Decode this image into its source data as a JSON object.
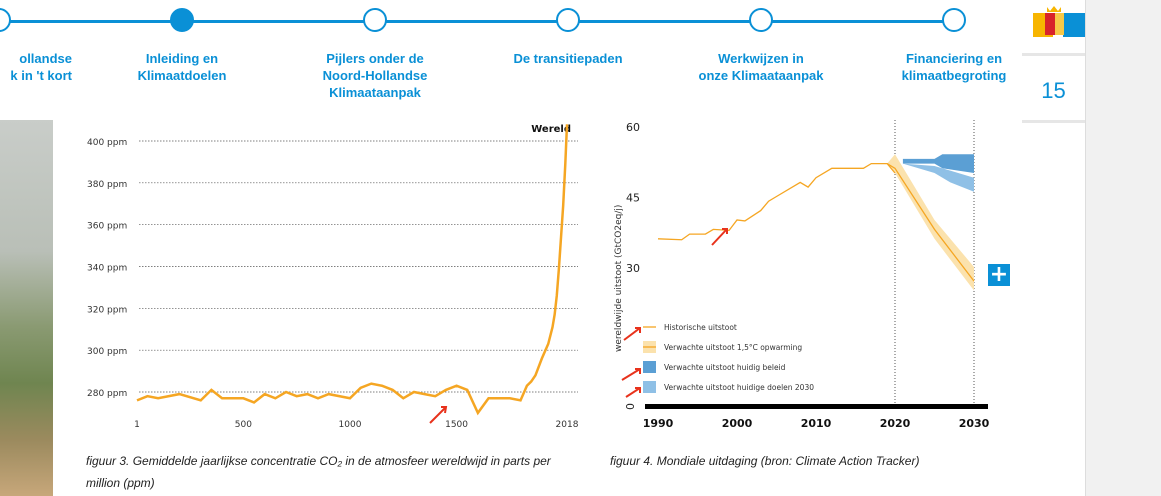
{
  "nav": {
    "steps": [
      {
        "label": "Noord-Hollandse aanpak in 't kort",
        "line1": "ollandse",
        "line2": "k in 't kort",
        "active": false
      },
      {
        "line1": "Inleiding en",
        "line2": "Klimaatdoelen",
        "active": true
      },
      {
        "line1": "Pijlers onder de",
        "line2": "Noord-Hollandse",
        "line3": "Klimaataanpak",
        "active": false
      },
      {
        "line1": "De transitiepaden",
        "active": false
      },
      {
        "line1": "Werkwijzen in",
        "line2": "onze Klimaataanpak",
        "active": false
      },
      {
        "line1": "Financiering en",
        "line2": "klimaatbegroting",
        "active": false
      }
    ]
  },
  "logo": "NH",
  "page_number": "15",
  "colors": {
    "accent": "#0a90d6",
    "orange": "#f5a623",
    "policy": "#5b9fd4",
    "targets": "#8fc0e6"
  },
  "chart_data": [
    {
      "type": "line",
      "title": "Wereld",
      "xlabel": "",
      "ylabel": "",
      "x_ticks": [
        "1",
        "500",
        "1000",
        "1500",
        "2018"
      ],
      "y_ticks": [
        "280 ppm",
        "300 ppm",
        "320 ppm",
        "340 ppm",
        "360 ppm",
        "380 ppm",
        "400 ppm"
      ],
      "xlim": [
        1,
        2018
      ],
      "ylim": [
        270,
        405
      ],
      "series": [
        {
          "name": "CO2",
          "x": [
            1,
            50,
            100,
            200,
            300,
            350,
            400,
            500,
            550,
            600,
            650,
            700,
            750,
            800,
            850,
            900,
            1000,
            1050,
            1100,
            1150,
            1200,
            1250,
            1300,
            1350,
            1400,
            1450,
            1500,
            1550,
            1600,
            1650,
            1700,
            1750,
            1800,
            1830,
            1850,
            1870,
            1900,
            1930,
            1950,
            1960,
            1970,
            1980,
            1990,
            2000,
            2010,
            2018
          ],
          "y": [
            276,
            278,
            277,
            279,
            276,
            281,
            277,
            277,
            275,
            279,
            277,
            280,
            278,
            279,
            277,
            279,
            277,
            282,
            284,
            283,
            281,
            277,
            280,
            279,
            278,
            281,
            283,
            281,
            270,
            277,
            277,
            277,
            276,
            283,
            285,
            288,
            296,
            303,
            311,
            317,
            326,
            339,
            354,
            369,
            389,
            408
          ]
        }
      ]
    },
    {
      "type": "line",
      "ylabel": "wereldwijde uitstoot (GtCO2eq/j)",
      "x_ticks": [
        "1990",
        "2000",
        "2010",
        "2020",
        "2030"
      ],
      "y_ticks": [
        "0",
        "30",
        "45",
        "60"
      ],
      "xlim": [
        1990,
        2030
      ],
      "ylim": [
        0,
        60
      ],
      "series": [
        {
          "name": "Historische uitstoot",
          "x": [
            1990,
            1993,
            1994,
            1996,
            1997,
            1999,
            2000,
            2001,
            2003,
            2004,
            2005,
            2008,
            2009,
            2010,
            2012,
            2016,
            2017,
            2019,
            2020
          ],
          "y": [
            36,
            35.8,
            37,
            37,
            38,
            37.8,
            40,
            39.8,
            42,
            44,
            45,
            48,
            47,
            49,
            51,
            51,
            52,
            52,
            50
          ]
        },
        {
          "name": "Verwachte uitstoot 1,5°C opwarming",
          "x": [
            2019,
            2020,
            2025,
            2030
          ],
          "y": [
            52,
            51,
            38,
            27
          ],
          "lower": [
            52,
            50,
            36,
            25
          ],
          "upper": [
            52,
            54,
            40,
            30
          ]
        },
        {
          "name": "Verwachte uitstoot huidig beleid",
          "x": [
            2021,
            2025,
            2026,
            2030
          ],
          "lower": [
            52,
            52,
            51,
            50
          ],
          "upper": [
            53,
            53,
            54,
            54
          ]
        },
        {
          "name": "Verwachte uitstoot huidige doelen 2030",
          "x": [
            2021,
            2025,
            2027,
            2030
          ],
          "lower": [
            52,
            50,
            48,
            46
          ],
          "upper": [
            52,
            51.5,
            50.5,
            49
          ]
        }
      ]
    }
  ],
  "legend": [
    "Historische uitstoot",
    "Verwachte uitstoot 1,5°C opwarming",
    "Verwachte uitstoot huidig beleid",
    "Verwachte uitstoot huidige doelen 2030"
  ],
  "captions": {
    "fig3": "figuur 3. Gemiddelde jaarlijkse concentratie CO₂ in de atmosfeer wereldwijd in parts per million (ppm)",
    "fig4": "figuur 4. Mondiale uitdaging (bron: Climate Action Tracker)"
  },
  "plus_label": "+"
}
